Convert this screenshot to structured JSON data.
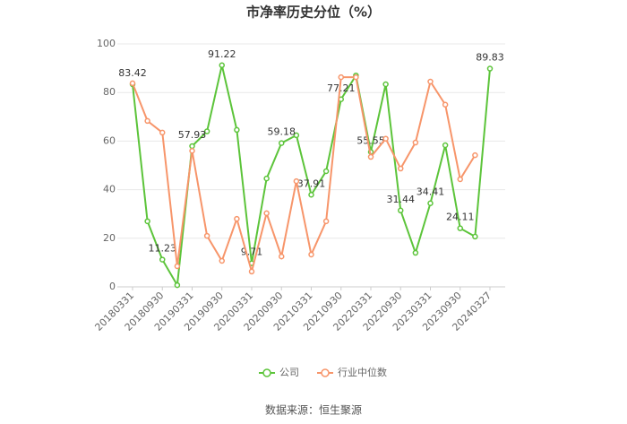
{
  "chart_data": {
    "type": "line",
    "title": "市净率历史分位（%）",
    "source": "数据来源：恒生聚源",
    "categories": [
      "20180331",
      null,
      "20180930",
      null,
      "20190331",
      null,
      "20190930",
      null,
      "20200331",
      null,
      "20200930",
      null,
      "20210331",
      null,
      "20210930",
      null,
      "20220331",
      null,
      "20220930",
      null,
      "20230331",
      null,
      "20230930",
      null,
      "20240327"
    ],
    "series": [
      {
        "name": "公司",
        "color": "#5cc43a",
        "values": [
          83.42,
          27,
          11.23,
          0.7,
          57.93,
          64,
          91.22,
          64.6,
          9.71,
          44.6,
          59.18,
          62.4,
          37.91,
          47.6,
          77.21,
          87,
          55.55,
          83.4,
          31.44,
          14,
          34.41,
          58.3,
          24.11,
          20.7,
          89.83
        ]
      },
      {
        "name": "行业中位数",
        "color": "#f7956a",
        "values": [
          83.8,
          68.3,
          63.5,
          8.5,
          56,
          21,
          10.7,
          28,
          6.3,
          30.3,
          12.5,
          43.5,
          13.3,
          27,
          86.3,
          86.3,
          53.5,
          61,
          48.7,
          59.4,
          84.5,
          75,
          44.3,
          54.2,
          null
        ]
      }
    ],
    "ylim": [
      0,
      100
    ],
    "yticks": [
      0,
      20,
      40,
      60,
      80,
      100
    ],
    "grid": true,
    "legend": "bottom"
  }
}
